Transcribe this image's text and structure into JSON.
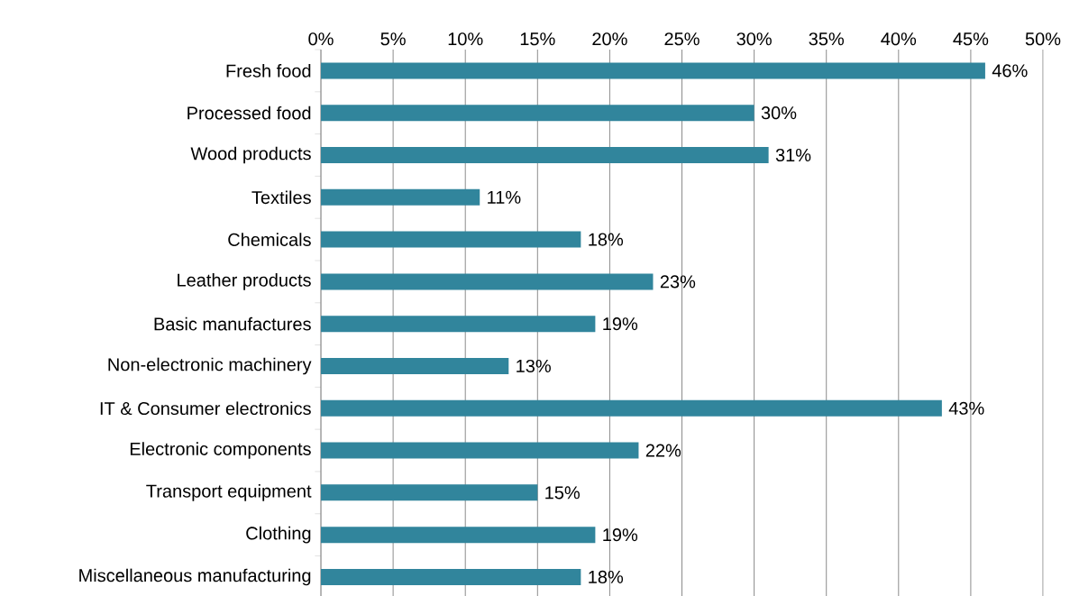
{
  "chart_data": {
    "type": "bar",
    "orientation": "horizontal",
    "categories": [
      "Fresh food",
      "Processed food",
      "Wood products",
      "Textiles",
      "Chemicals",
      "Leather products",
      "Basic manufactures",
      "Non-electronic machinery",
      "IT & Consumer electronics",
      "Electronic components",
      "Transport equipment",
      "Clothing",
      "Miscellaneous manufacturing"
    ],
    "values": [
      46,
      30,
      31,
      11,
      18,
      23,
      19,
      13,
      43,
      22,
      15,
      19,
      18
    ],
    "value_labels": [
      "46%",
      "30%",
      "31%",
      "11%",
      "18%",
      "23%",
      "19%",
      "13%",
      "43%",
      "22%",
      "15%",
      "19%",
      "18%"
    ],
    "color": "#31859c",
    "xlim": [
      0,
      50
    ],
    "xticks": [
      {
        "value": 0,
        "label": "0%"
      },
      {
        "value": 5,
        "label": "5%"
      },
      {
        "value": 10,
        "label": "10%"
      },
      {
        "value": 15,
        "label": "15%"
      },
      {
        "value": 20,
        "label": "20%"
      },
      {
        "value": 25,
        "label": "25%"
      },
      {
        "value": 30,
        "label": "30%"
      },
      {
        "value": 35,
        "label": "35%"
      },
      {
        "value": 40,
        "label": "40%"
      },
      {
        "value": 45,
        "label": "45%"
      },
      {
        "value": 50,
        "label": "50%"
      }
    ],
    "grid": "x"
  }
}
